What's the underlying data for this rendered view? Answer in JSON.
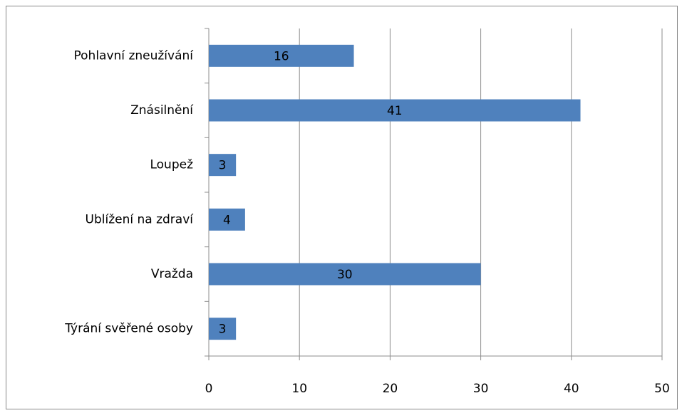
{
  "chart_data": {
    "type": "bar",
    "orientation": "horizontal",
    "categories": [
      "Pohlavní zneužívání",
      "Znásilnění",
      "Loupež",
      "Ublížení na zdraví",
      "Vražda",
      "Týrání svěřené osoby"
    ],
    "values": [
      16,
      41,
      3,
      4,
      30,
      3
    ],
    "color": "#4f81bd",
    "xlim": [
      0,
      50
    ],
    "xticks": [
      0,
      10,
      20,
      30,
      40,
      50
    ],
    "grid": true
  }
}
